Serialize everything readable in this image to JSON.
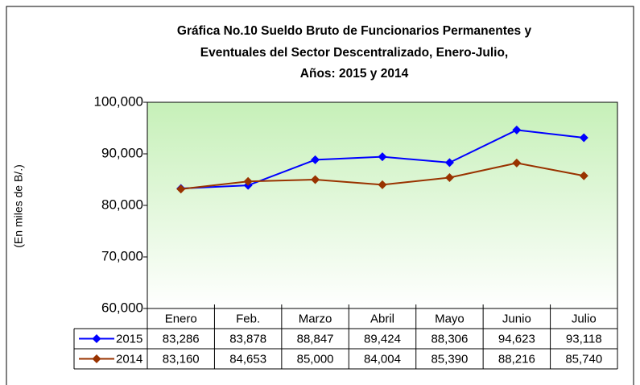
{
  "chart_data": {
    "type": "line",
    "title": [
      "Gráfica No.10 Sueldo Bruto de Funcionarios Permanentes y",
      "Eventuales del Sector Descentralizado, Enero-Julio,",
      "Años: 2015 y 2014"
    ],
    "y_label": "(En miles de B/.)",
    "categories": [
      "Enero",
      "Feb.",
      "Marzo",
      "Abril",
      "Mayo",
      "Junio",
      "Julio"
    ],
    "series": [
      {
        "name": "2015",
        "color": "#0000ff",
        "values": [
          83286,
          83878,
          88847,
          89424,
          88306,
          94623,
          93118
        ],
        "value_labels": [
          "83,286",
          "83,878",
          "88,847",
          "89,424",
          "88,306",
          "94,623",
          "93,118"
        ]
      },
      {
        "name": "2014",
        "color": "#993300",
        "values": [
          83160,
          84653,
          85000,
          84004,
          85390,
          88216,
          85740
        ],
        "value_labels": [
          "83,160",
          "84,653",
          "85,000",
          "84,004",
          "85,390",
          "88,216",
          "85,740"
        ]
      }
    ],
    "ylim": [
      60000,
      100000
    ],
    "yticks": [
      {
        "value": 60000,
        "label": "60,000"
      },
      {
        "value": 70000,
        "label": "70,000"
      },
      {
        "value": 80000,
        "label": "80,000"
      },
      {
        "value": 90000,
        "label": "90,000"
      },
      {
        "value": 100000,
        "label": "100,000"
      }
    ],
    "grid": false
  }
}
